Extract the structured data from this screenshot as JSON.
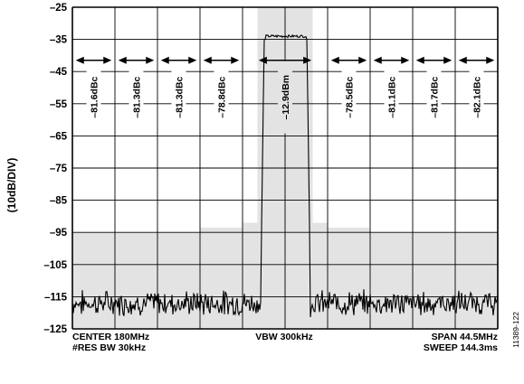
{
  "chart_data": {
    "type": "line",
    "title": "",
    "ylabel": "(10dB/DIV)",
    "ylim": [
      -125,
      -25
    ],
    "yticks": [
      "–25",
      "–35",
      "–45",
      "–55",
      "–65",
      "–75",
      "–85",
      "–95",
      "–105",
      "–115",
      "–125"
    ],
    "ytick_values": [
      -25,
      -35,
      -45,
      -55,
      -65,
      -75,
      -85,
      -95,
      -105,
      -115,
      -125
    ],
    "xlim_mhz": [
      157.75,
      202.25
    ],
    "grid": true,
    "channels": [
      {
        "label": "–81.6dBc"
      },
      {
        "label": "–81.3dBc"
      },
      {
        "label": "–81.3dBc"
      },
      {
        "label": "–78.8dBc"
      },
      {
        "label": "–12.9dBm"
      },
      {
        "label": "–78.5dBc"
      },
      {
        "label": "–81.1dBc"
      },
      {
        "label": "–81.7dBc"
      },
      {
        "label": "–82.1dBc"
      }
    ],
    "center_channel_index": 4,
    "spectrum": {
      "noise_floor_dB": -117,
      "signal_top_dB": -34,
      "signal_start_mhz": 177.8,
      "signal_end_mhz": 182.3
    },
    "bottom_left_line1": "CENTER 180MHz",
    "bottom_left_line2": "#RES BW 30kHz",
    "bottom_center": "VBW 300kHz",
    "bottom_right_line1": "SPAN 44.5MHz",
    "bottom_right_line2": "SWEEP 144.3ms",
    "figure_id": "11389-122"
  },
  "colors": {
    "grid": "#000000",
    "shade": "#e3e3e3",
    "trace": "#000000",
    "background": "#ffffff"
  }
}
